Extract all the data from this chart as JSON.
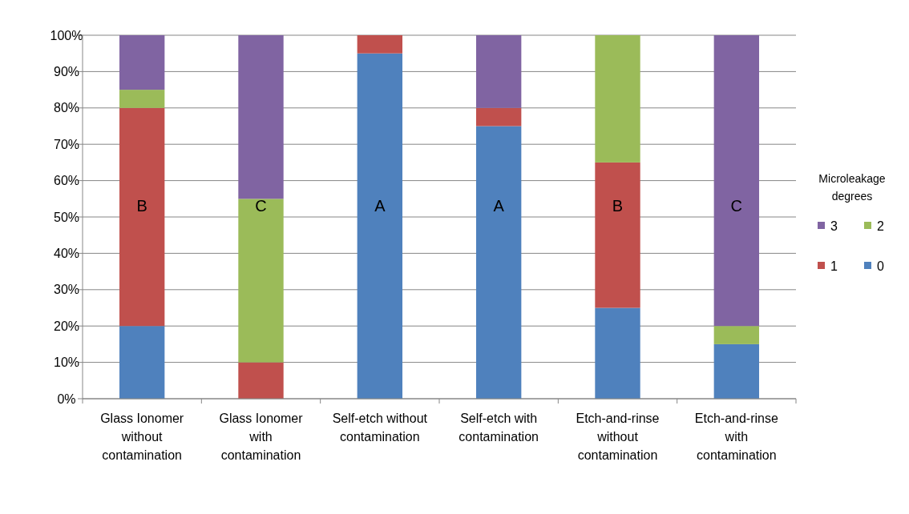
{
  "chart_data": {
    "type": "bar",
    "stacked": true,
    "categories": [
      "Glass Ionomer without contamination",
      "Glass Ionomer with contamination",
      "Self-etch without contamination",
      "Self-etch with contamination",
      "Etch-and-rinse without contamination",
      "Etch-and-rinse with contamination"
    ],
    "series": [
      {
        "name": "0",
        "color": "#4f81bd",
        "values": [
          20,
          0,
          95,
          75,
          25,
          15
        ]
      },
      {
        "name": "1",
        "color": "#c0504d",
        "values": [
          60,
          10,
          5,
          5,
          40,
          0
        ]
      },
      {
        "name": "2",
        "color": "#9bbb59",
        "values": [
          5,
          45,
          0,
          0,
          35,
          5
        ]
      },
      {
        "name": "3",
        "color": "#8064a2",
        "values": [
          15,
          45,
          0,
          20,
          0,
          80
        ]
      }
    ],
    "ylim": [
      0,
      100
    ],
    "yticks": [
      {
        "value": 0,
        "label": "0%"
      },
      {
        "value": 10,
        "label": "10%"
      },
      {
        "value": 20,
        "label": "20%"
      },
      {
        "value": 30,
        "label": "30%"
      },
      {
        "value": 40,
        "label": "40%"
      },
      {
        "value": 50,
        "label": "50%"
      },
      {
        "value": 60,
        "label": "60%"
      },
      {
        "value": 70,
        "label": "70%"
      },
      {
        "value": 80,
        "label": "80%"
      },
      {
        "value": 90,
        "label": "90%"
      },
      {
        "value": 100,
        "label": "100%"
      }
    ],
    "grid": "y",
    "legend": "right",
    "legend_title": "Microleakage degrees",
    "annotations": [
      "B",
      "C",
      "A",
      "A",
      "B",
      "C"
    ]
  }
}
